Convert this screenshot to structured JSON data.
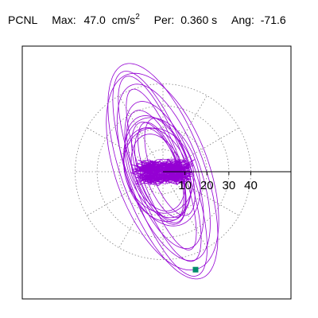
{
  "header": {
    "station": "PCNL",
    "max_label": "Max:",
    "max_value": "47.0",
    "max_unit": "cm/s",
    "max_unit_exp": "2",
    "per_label": "Per:",
    "per_value": "0.360 s",
    "ang_label": "Ang:",
    "ang_value": "-71.6"
  },
  "chart_data": {
    "type": "polar-orbit",
    "units": "cm/s2",
    "radial_ticks": [
      10,
      20,
      30,
      40
    ],
    "radial_tick_labels": [
      "10",
      "20",
      "30",
      "40"
    ],
    "radial_range": [
      0,
      50
    ],
    "angle_grid_step_deg": 30,
    "grid": true,
    "trace_color": "#9400d3",
    "marker_color": "#008b6b",
    "peak_marker": {
      "amplitude": 47.0,
      "angle_deg": -71.6
    }
  }
}
